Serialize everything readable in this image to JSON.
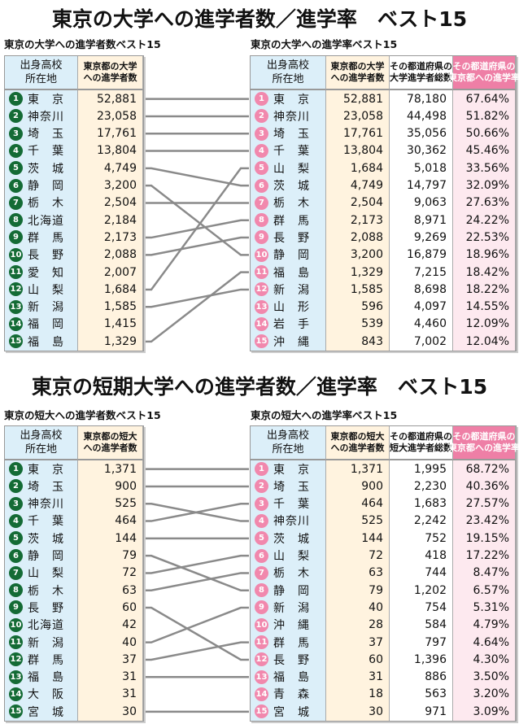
{
  "colors": {
    "rank_left": "#146b35",
    "rank_right": "#f188ad",
    "line": "#8a8a8a",
    "pref_bg": "#dceff9",
    "count_bg": "#fff3df",
    "rate_bg": "#fde9ef",
    "rate_header": "#ee7fa6"
  },
  "sections": [
    {
      "title": "東京の大学への進学者数／進学率　ベスト15",
      "left": {
        "subtitle": "東京の大学への進学者数ベスト15",
        "headers": [
          "出身高校\n所在地",
          "東京都の大学\nへの進学者数"
        ],
        "rows": [
          [
            "東　京",
            "52,881"
          ],
          [
            "神奈川",
            "23,058"
          ],
          [
            "埼　玉",
            "17,761"
          ],
          [
            "千　葉",
            "13,804"
          ],
          [
            "茨　城",
            "4,749"
          ],
          [
            "静　岡",
            "3,200"
          ],
          [
            "栃　木",
            "2,504"
          ],
          [
            "北海道",
            "2,184"
          ],
          [
            "群　馬",
            "2,173"
          ],
          [
            "長　野",
            "2,088"
          ],
          [
            "愛　知",
            "2,007"
          ],
          [
            "山　梨",
            "1,684"
          ],
          [
            "新　潟",
            "1,585"
          ],
          [
            "福　岡",
            "1,415"
          ],
          [
            "福　島",
            "1,329"
          ]
        ]
      },
      "right": {
        "subtitle": "東京の大学への進学率ベスト15",
        "headers": [
          "出身高校\n所在地",
          "東京都の大学\nへの進学者数",
          "その都道府県の\n大学進学者総数",
          "その都道府県の\n東京都への進学率"
        ],
        "rows": [
          [
            "東　京",
            "52,881",
            "78,180",
            "67.64%"
          ],
          [
            "神奈川",
            "23,058",
            "44,498",
            "51.82%"
          ],
          [
            "埼　玉",
            "17,761",
            "35,056",
            "50.66%"
          ],
          [
            "千　葉",
            "13,804",
            "30,362",
            "45.46%"
          ],
          [
            "山　梨",
            "1,684",
            "5,018",
            "33.56%"
          ],
          [
            "茨　城",
            "4,749",
            "14,797",
            "32.09%"
          ],
          [
            "栃　木",
            "2,504",
            "9,063",
            "27.63%"
          ],
          [
            "群　馬",
            "2,173",
            "8,971",
            "24.22%"
          ],
          [
            "長　野",
            "2,088",
            "9,269",
            "22.53%"
          ],
          [
            "静　岡",
            "3,200",
            "16,879",
            "18.96%"
          ],
          [
            "福　島",
            "1,329",
            "7,215",
            "18.42%"
          ],
          [
            "新　潟",
            "1,585",
            "8,698",
            "18.22%"
          ],
          [
            "山　形",
            "596",
            "4,097",
            "14.55%"
          ],
          [
            "岩　手",
            "539",
            "4,460",
            "12.09%"
          ],
          [
            "沖　縄",
            "843",
            "7,002",
            "12.04%"
          ]
        ]
      }
    },
    {
      "title": "東京の短期大学への進学者数／進学率　ベスト15",
      "left": {
        "subtitle": "東京の短大への進学者数ベスト15",
        "headers": [
          "出身高校\n所在地",
          "東京都の短大\nへの進学者数"
        ],
        "rows": [
          [
            "東　京",
            "1,371"
          ],
          [
            "埼　玉",
            "900"
          ],
          [
            "神奈川",
            "525"
          ],
          [
            "千　葉",
            "464"
          ],
          [
            "茨　城",
            "144"
          ],
          [
            "静　岡",
            "79"
          ],
          [
            "山　梨",
            "72"
          ],
          [
            "栃　木",
            "63"
          ],
          [
            "長　野",
            "60"
          ],
          [
            "北海道",
            "42"
          ],
          [
            "新　潟",
            "40"
          ],
          [
            "群　馬",
            "37"
          ],
          [
            "福　島",
            "31"
          ],
          [
            "大　阪",
            "31"
          ],
          [
            "宮　城",
            "30"
          ]
        ]
      },
      "right": {
        "subtitle": "東京の短大への進学率ベスト15",
        "headers": [
          "出身高校\n所在地",
          "東京都の短大\nへの進学者数",
          "その都道府県の\n短大進学者総数",
          "その都道府県の\n東京都への進学率"
        ],
        "rows": [
          [
            "東　京",
            "1,371",
            "1,995",
            "68.72%"
          ],
          [
            "埼　玉",
            "900",
            "2,230",
            "40.36%"
          ],
          [
            "千　葉",
            "464",
            "1,683",
            "27.57%"
          ],
          [
            "神奈川",
            "525",
            "2,242",
            "23.42%"
          ],
          [
            "茨　城",
            "144",
            "752",
            "19.15%"
          ],
          [
            "山　梨",
            "72",
            "418",
            "17.22%"
          ],
          [
            "栃　木",
            "63",
            "744",
            "8.47%"
          ],
          [
            "静　岡",
            "79",
            "1,202",
            "6.57%"
          ],
          [
            "新　潟",
            "40",
            "754",
            "5.31%"
          ],
          [
            "沖　縄",
            "28",
            "584",
            "4.79%"
          ],
          [
            "群　馬",
            "37",
            "797",
            "4.64%"
          ],
          [
            "長　野",
            "60",
            "1,396",
            "4.30%"
          ],
          [
            "福　島",
            "31",
            "886",
            "3.50%"
          ],
          [
            "青　森",
            "18",
            "563",
            "3.20%"
          ],
          [
            "宮　城",
            "30",
            "971",
            "3.09%"
          ]
        ]
      }
    }
  ]
}
